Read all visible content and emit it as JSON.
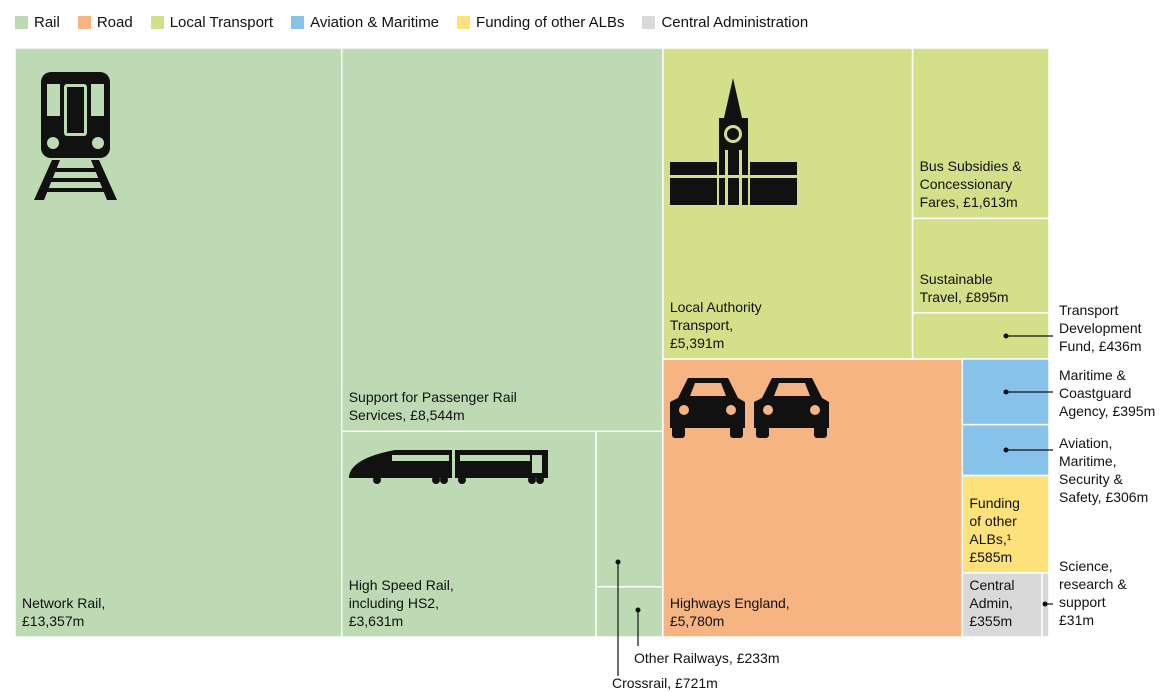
{
  "chart_data": {
    "type": "treemap",
    "series": [
      {
        "name": "Rail",
        "color": "#bddab5",
        "categories": [
          "Network Rail,",
          "Support for Passenger Rail Services,",
          "High Speed Rail, including HS2,",
          "Crossrail,",
          "Other Railways,"
        ],
        "values": [
          13357,
          8544,
          3631,
          721,
          233
        ],
        "value_labels": [
          "£13,357m",
          "£8,544m",
          "£3,631m",
          "£721m",
          "£233m"
        ]
      },
      {
        "name": "Road",
        "color": "#f6b483",
        "categories": [
          "Highways England,"
        ],
        "values": [
          5780
        ],
        "value_labels": [
          "£5,780m"
        ]
      },
      {
        "name": "Local Transport",
        "color": "#d4df89",
        "categories": [
          "Local Authority Transport,",
          "Bus Subsidies & Concessionary Fares,",
          "Sustainable Travel,",
          "Transport Development Fund,"
        ],
        "values": [
          5391,
          1613,
          895,
          436
        ],
        "value_labels": [
          "£5,391m",
          "£1,613m",
          "£895m",
          "£436m"
        ]
      },
      {
        "name": "Aviation & Maritime",
        "color": "#86c2e9",
        "categories": [
          "Maritime & Coastguard Agency,",
          "Aviation, Maritime, Security & Safety,"
        ],
        "values": [
          395,
          306
        ],
        "value_labels": [
          "£395m",
          "£306m"
        ]
      },
      {
        "name": "Funding of other ALBs",
        "color": "#fde17a",
        "categories": [
          "Funding of other ALBs,¹"
        ],
        "values": [
          585
        ],
        "value_labels": [
          "£585m"
        ]
      },
      {
        "name": "Central Administration",
        "color": "#d9d9d9",
        "categories": [
          "Central Admin,",
          "Science, research & support"
        ],
        "values": [
          355,
          31
        ],
        "value_labels": [
          "£355m",
          "£31m"
        ]
      }
    ]
  }
}
